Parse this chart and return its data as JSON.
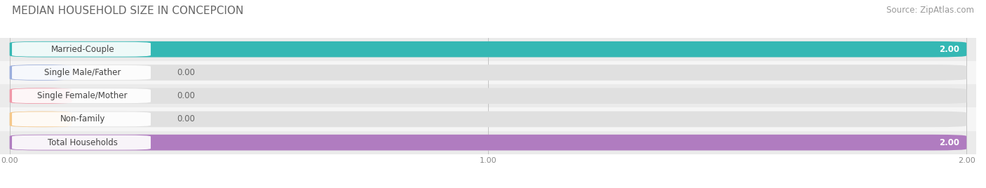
{
  "title": "MEDIAN HOUSEHOLD SIZE IN CONCEPCION",
  "source": "Source: ZipAtlas.com",
  "categories": [
    "Married-Couple",
    "Single Male/Father",
    "Single Female/Mother",
    "Non-family",
    "Total Households"
  ],
  "values": [
    2.0,
    0.0,
    0.0,
    0.0,
    2.0
  ],
  "bar_colors": [
    "#35b8b4",
    "#9baedd",
    "#f098a8",
    "#f5c88a",
    "#b07cc0"
  ],
  "bar_bg_color": "#e0e0e0",
  "xlim": [
    0,
    2.0
  ],
  "xticks": [
    0.0,
    1.0,
    2.0
  ],
  "xtick_labels": [
    "0.00",
    "1.00",
    "2.00"
  ],
  "title_fontsize": 11,
  "source_fontsize": 8.5,
  "label_fontsize": 8.5,
  "value_fontsize": 8.5,
  "background_color": "#ffffff",
  "bar_height": 0.68,
  "row_bg_colors": [
    "#ebebeb",
    "#f5f5f5",
    "#ebebeb",
    "#f5f5f5",
    "#ebebeb"
  ]
}
